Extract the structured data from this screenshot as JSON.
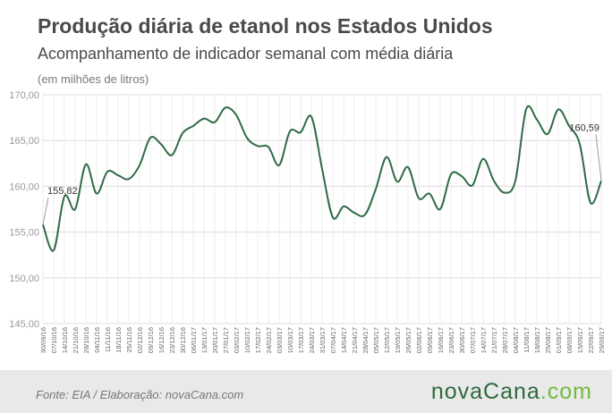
{
  "header": {
    "title": "Produção diária de etanol nos Estados Unidos",
    "subtitle": "Acompanhamento de indicador semanal com média diária",
    "unit": "(em milhões de litros)"
  },
  "footer": {
    "source": "Fonte:  EIA / Elaboração:  novaCana.com",
    "logo_main": "novaCana",
    "logo_suffix": ".com"
  },
  "colors": {
    "line": "#2f6b45",
    "grid": "#dcdcdc",
    "axis_text": "#999999",
    "background": "#ffffff",
    "footer_bg": "#e9e9e9"
  },
  "chart_data": {
    "type": "line",
    "title": "Produção diária de etanol nos Estados Unidos",
    "ylabel": "(em milhões de litros)",
    "ylim": [
      145,
      170
    ],
    "yticks": [
      "145,00",
      "150,00",
      "155,00",
      "160,00",
      "165,00",
      "170,00"
    ],
    "grid": true,
    "x_tick_labels": [
      "30/09/16",
      "07/10/16",
      "14/10/16",
      "21/10/16",
      "28/10/16",
      "04/11/16",
      "11/11/16",
      "18/11/16",
      "25/11/16",
      "02/12/16",
      "09/12/16",
      "16/12/16",
      "23/12/16",
      "30/12/16",
      "06/01/17",
      "13/01/17",
      "20/01/17",
      "27/01/17",
      "03/02/17",
      "10/02/17",
      "17/02/17",
      "24/02/17",
      "03/03/17",
      "10/03/17",
      "17/03/17",
      "24/03/17",
      "31/03/17",
      "07/04/17",
      "14/04/17",
      "21/04/17",
      "28/04/17",
      "05/05/17",
      "12/05/17",
      "19/05/17",
      "26/05/17",
      "02/06/17",
      "09/06/17",
      "16/06/17",
      "23/06/17",
      "30/06/17",
      "07/07/17",
      "14/07/17",
      "21/07/17",
      "28/07/17",
      "04/08/17",
      "11/08/17",
      "18/08/17",
      "25/08/17",
      "01/09/17",
      "08/09/17",
      "15/09/17",
      "22/09/17",
      "29/09/17"
    ],
    "series": [
      {
        "values": [
          155.82,
          153.0,
          158.9,
          157.5,
          162.4,
          159.2,
          161.6,
          161.2,
          160.8,
          162.3,
          165.3,
          164.6,
          163.4,
          165.8,
          166.6,
          167.4,
          167.0,
          168.6,
          167.8,
          165.3,
          164.4,
          164.3,
          162.3,
          166.0,
          165.9,
          167.6,
          161.9,
          156.6,
          157.8,
          157.1,
          156.9,
          159.7,
          163.2,
          160.5,
          162.1,
          158.7,
          159.2,
          157.5,
          161.3,
          161.1,
          160.1,
          163.0,
          160.6,
          159.3,
          160.6,
          168.4,
          167.3,
          165.7,
          168.4,
          166.6,
          164.6,
          158.2,
          160.59
        ]
      }
    ],
    "annotations": [
      {
        "text": "155,82",
        "index": 0
      },
      {
        "text": "160,59",
        "index": 52
      }
    ]
  }
}
